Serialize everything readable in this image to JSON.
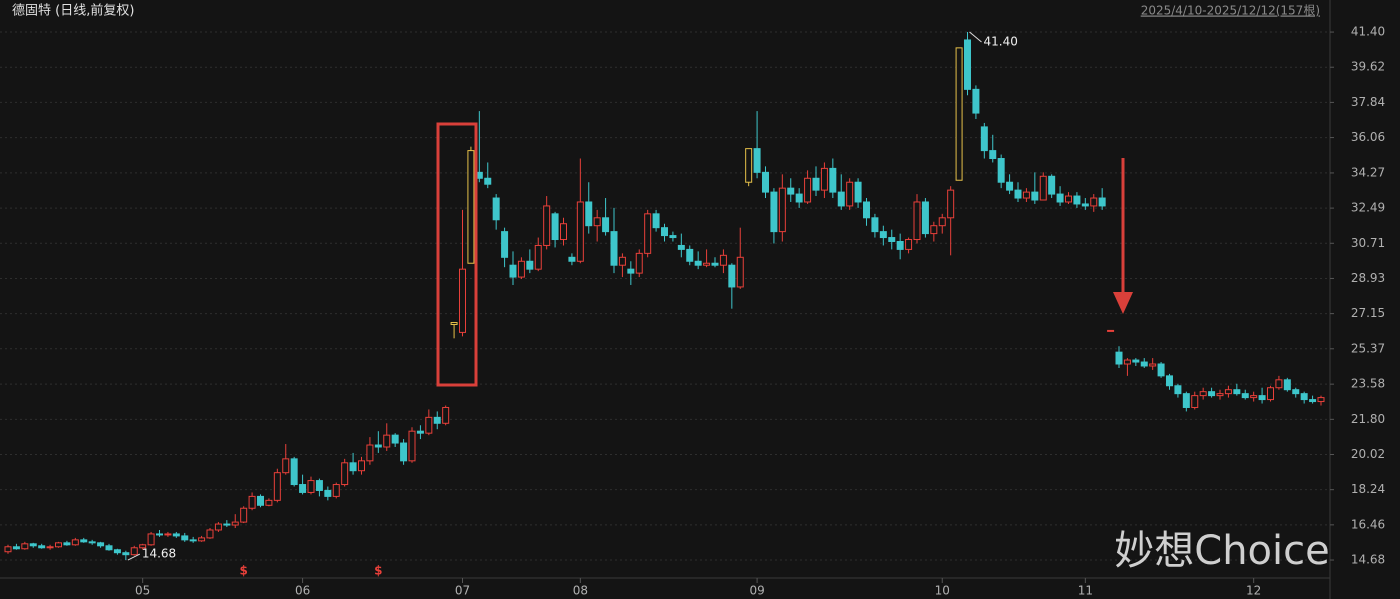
{
  "chart_data": {
    "type": "candlestick",
    "title": "德固特 (日线,前复权)",
    "subtitle": "2025/4/10-2025/12/12(157根)",
    "watermark": "妙想Choice",
    "up_color": "#e8403a",
    "down_color": "#3ec6cb",
    "limit_color": "#e6c14a",
    "limit_up": [
      53,
      55,
      88,
      113
    ],
    "ylim": [
      13.77,
      42.01
    ],
    "yticks": [
      {
        "value": 41.4,
        "label": "41.40"
      },
      39.62,
      37.84,
      36.06,
      34.27,
      32.49,
      30.71,
      28.93,
      27.15,
      25.37,
      23.58,
      {
        "value": 21.8,
        "label": "21.80"
      },
      20.02,
      18.24,
      16.46,
      14.68
    ],
    "xticks": [
      {
        "value": 16,
        "label": "05"
      },
      {
        "value": 35,
        "label": "06"
      },
      {
        "value": 54,
        "label": "07"
      },
      {
        "value": 68,
        "label": "08"
      },
      {
        "value": 89,
        "label": "09"
      },
      {
        "value": 111,
        "label": "10"
      },
      {
        "value": 128,
        "label": "11"
      },
      {
        "value": 148,
        "label": "12"
      }
    ],
    "annotations": [
      {
        "text": "41.40",
        "index": 114
      },
      {
        "text": "14.68",
        "index": 14
      }
    ],
    "markers": [
      {
        "label": "$",
        "index": 28
      },
      {
        "label": "$",
        "index": 44
      }
    ],
    "ohlc": [
      [
        15.1,
        15.45,
        15.0,
        15.35
      ],
      [
        15.35,
        15.5,
        15.2,
        15.25
      ],
      [
        15.25,
        15.6,
        15.2,
        15.5
      ],
      [
        15.5,
        15.55,
        15.3,
        15.4
      ],
      [
        15.4,
        15.5,
        15.25,
        15.3
      ],
      [
        15.3,
        15.45,
        15.2,
        15.35
      ],
      [
        15.35,
        15.6,
        15.3,
        15.55
      ],
      [
        15.55,
        15.65,
        15.4,
        15.45
      ],
      [
        15.45,
        15.8,
        15.4,
        15.7
      ],
      [
        15.7,
        15.8,
        15.55,
        15.6
      ],
      [
        15.6,
        15.7,
        15.45,
        15.55
      ],
      [
        15.55,
        15.6,
        15.3,
        15.4
      ],
      [
        15.4,
        15.5,
        15.15,
        15.2
      ],
      [
        15.2,
        15.25,
        14.95,
        15.05
      ],
      [
        15.05,
        15.15,
        14.68,
        14.95
      ],
      [
        14.95,
        15.4,
        14.9,
        15.3
      ],
      [
        15.3,
        15.5,
        15.2,
        15.45
      ],
      [
        15.45,
        16.1,
        15.4,
        16.0
      ],
      [
        16.0,
        16.2,
        15.85,
        15.95
      ],
      [
        15.95,
        16.1,
        15.85,
        16.0
      ],
      [
        16.0,
        16.1,
        15.8,
        15.9
      ],
      [
        15.9,
        16.05,
        15.6,
        15.7
      ],
      [
        15.7,
        15.85,
        15.55,
        15.65
      ],
      [
        15.65,
        15.9,
        15.6,
        15.8
      ],
      [
        15.8,
        16.3,
        15.75,
        16.2
      ],
      [
        16.2,
        16.6,
        16.1,
        16.5
      ],
      [
        16.5,
        16.7,
        16.35,
        16.45
      ],
      [
        16.45,
        17.0,
        16.3,
        16.6
      ],
      [
        16.6,
        17.4,
        16.55,
        17.3
      ],
      [
        17.3,
        18.1,
        17.2,
        17.9
      ],
      [
        17.9,
        18.0,
        17.35,
        17.45
      ],
      [
        17.45,
        17.8,
        17.4,
        17.7
      ],
      [
        17.7,
        19.3,
        17.6,
        19.1
      ],
      [
        19.1,
        20.55,
        19.0,
        19.8
      ],
      [
        19.8,
        19.9,
        18.4,
        18.5
      ],
      [
        18.5,
        19.0,
        18.0,
        18.1
      ],
      [
        18.1,
        18.9,
        18.0,
        18.7
      ],
      [
        18.7,
        18.8,
        17.9,
        18.2
      ],
      [
        18.2,
        18.4,
        17.7,
        17.9
      ],
      [
        17.9,
        18.6,
        17.8,
        18.5
      ],
      [
        18.5,
        19.8,
        18.4,
        19.6
      ],
      [
        19.6,
        20.1,
        19.0,
        19.2
      ],
      [
        19.2,
        19.9,
        19.0,
        19.7
      ],
      [
        19.7,
        20.9,
        19.5,
        20.5
      ],
      [
        20.5,
        21.2,
        20.1,
        20.4
      ],
      [
        20.4,
        21.6,
        20.2,
        21.0
      ],
      [
        21.0,
        21.1,
        20.4,
        20.6
      ],
      [
        20.6,
        20.8,
        19.5,
        19.7
      ],
      [
        19.7,
        21.4,
        19.6,
        21.2
      ],
      [
        21.2,
        21.5,
        20.8,
        21.1
      ],
      [
        21.1,
        22.3,
        21.0,
        21.9
      ],
      [
        21.9,
        22.2,
        21.3,
        21.6
      ],
      [
        21.6,
        22.5,
        21.5,
        22.4
      ],
      [
        26.6,
        26.7,
        25.9,
        26.7
      ],
      [
        26.2,
        32.4,
        26.0,
        29.4
      ],
      [
        29.7,
        35.6,
        29.7,
        35.4
      ],
      [
        34.3,
        37.4,
        33.8,
        34.0
      ],
      [
        34.0,
        34.8,
        33.5,
        33.7
      ],
      [
        33.0,
        33.2,
        31.4,
        31.9
      ],
      [
        31.3,
        31.5,
        29.5,
        30.0
      ],
      [
        29.6,
        30.3,
        28.6,
        29.0
      ],
      [
        29.0,
        30.0,
        28.9,
        29.8
      ],
      [
        29.8,
        30.4,
        29.2,
        29.4
      ],
      [
        29.4,
        31.0,
        29.3,
        30.6
      ],
      [
        30.6,
        33.1,
        30.4,
        32.6
      ],
      [
        32.2,
        32.3,
        30.5,
        30.9
      ],
      [
        30.9,
        32.0,
        30.6,
        31.7
      ],
      [
        30.0,
        30.2,
        29.6,
        29.8
      ],
      [
        29.8,
        35.0,
        29.7,
        32.8
      ],
      [
        32.8,
        33.8,
        31.2,
        31.6
      ],
      [
        31.6,
        32.4,
        30.8,
        32.0
      ],
      [
        32.0,
        33.0,
        31.1,
        31.3
      ],
      [
        31.3,
        32.5,
        29.2,
        29.6
      ],
      [
        29.6,
        30.2,
        29.0,
        30.0
      ],
      [
        29.4,
        29.8,
        28.6,
        29.2
      ],
      [
        29.2,
        30.4,
        29.0,
        30.2
      ],
      [
        30.2,
        32.4,
        30.0,
        32.2
      ],
      [
        32.2,
        32.4,
        31.3,
        31.5
      ],
      [
        31.5,
        31.7,
        30.8,
        31.1
      ],
      [
        31.1,
        31.3,
        30.8,
        31.0
      ],
      [
        30.6,
        31.2,
        30.0,
        30.4
      ],
      [
        30.4,
        30.6,
        29.6,
        29.8
      ],
      [
        29.8,
        30.3,
        29.4,
        29.6
      ],
      [
        29.6,
        30.4,
        29.5,
        29.7
      ],
      [
        29.7,
        30.0,
        29.5,
        29.6
      ],
      [
        29.6,
        30.4,
        29.2,
        30.1
      ],
      [
        29.6,
        29.7,
        27.4,
        28.5
      ],
      [
        28.5,
        31.5,
        28.4,
        30.0
      ],
      [
        33.8,
        35.5,
        33.6,
        35.5
      ],
      [
        35.5,
        37.4,
        34.0,
        34.3
      ],
      [
        34.3,
        34.6,
        33.0,
        33.3
      ],
      [
        33.3,
        33.5,
        30.7,
        31.3
      ],
      [
        31.3,
        34.2,
        30.8,
        33.5
      ],
      [
        33.5,
        34.0,
        32.8,
        33.2
      ],
      [
        33.2,
        33.5,
        32.5,
        32.8
      ],
      [
        32.8,
        34.4,
        32.7,
        34.0
      ],
      [
        34.0,
        34.6,
        33.1,
        33.4
      ],
      [
        33.4,
        34.8,
        33.0,
        34.5
      ],
      [
        34.5,
        35.0,
        33.0,
        33.3
      ],
      [
        33.3,
        34.2,
        32.4,
        32.6
      ],
      [
        32.6,
        34.0,
        32.4,
        33.8
      ],
      [
        33.8,
        34.0,
        32.5,
        32.8
      ],
      [
        32.8,
        33.0,
        31.6,
        32.0
      ],
      [
        32.0,
        32.2,
        31.0,
        31.3
      ],
      [
        31.3,
        31.6,
        30.6,
        31.0
      ],
      [
        31.0,
        31.4,
        30.4,
        30.8
      ],
      [
        30.8,
        31.2,
        29.9,
        30.4
      ],
      [
        30.4,
        31.0,
        30.2,
        30.9
      ],
      [
        30.9,
        33.2,
        30.7,
        32.8
      ],
      [
        32.8,
        33.0,
        31.0,
        31.2
      ],
      [
        31.2,
        31.8,
        30.8,
        31.6
      ],
      [
        31.6,
        32.2,
        31.2,
        32.0
      ],
      [
        32.0,
        33.6,
        30.1,
        33.4
      ],
      [
        33.9,
        40.6,
        33.9,
        40.6
      ],
      [
        41.0,
        41.4,
        38.2,
        38.5
      ],
      [
        38.5,
        38.7,
        37.0,
        37.3
      ],
      [
        36.6,
        36.8,
        35.0,
        35.4
      ],
      [
        35.4,
        36.2,
        34.8,
        35.0
      ],
      [
        35.0,
        35.2,
        33.5,
        33.8
      ],
      [
        33.8,
        34.2,
        33.2,
        33.4
      ],
      [
        33.4,
        33.8,
        32.8,
        33.0
      ],
      [
        33.0,
        33.5,
        32.8,
        33.3
      ],
      [
        33.3,
        34.3,
        32.7,
        32.9
      ],
      [
        32.9,
        34.3,
        32.9,
        34.1
      ],
      [
        34.1,
        34.2,
        33.0,
        33.2
      ],
      [
        33.2,
        33.6,
        32.6,
        32.8
      ],
      [
        32.8,
        33.3,
        32.7,
        33.1
      ],
      [
        33.1,
        33.3,
        32.5,
        32.7
      ],
      [
        32.7,
        33.0,
        32.4,
        32.6
      ],
      [
        32.6,
        33.2,
        32.3,
        33.0
      ],
      [
        33.0,
        33.5,
        32.4,
        32.6
      ],
      [
        26.3,
        26.3,
        26.3,
        26.3
      ],
      [
        25.2,
        25.5,
        24.4,
        24.6
      ],
      [
        24.6,
        24.9,
        24.0,
        24.8
      ],
      [
        24.8,
        24.9,
        24.5,
        24.7
      ],
      [
        24.7,
        24.9,
        24.4,
        24.5
      ],
      [
        24.5,
        24.9,
        24.3,
        24.6
      ],
      [
        24.6,
        24.7,
        23.9,
        24.0
      ],
      [
        24.0,
        24.1,
        23.3,
        23.5
      ],
      [
        23.5,
        23.6,
        22.9,
        23.1
      ],
      [
        23.1,
        23.2,
        22.2,
        22.4
      ],
      [
        22.4,
        23.2,
        22.3,
        23.0
      ],
      [
        23.0,
        23.4,
        22.8,
        23.2
      ],
      [
        23.2,
        23.4,
        22.9,
        23.0
      ],
      [
        23.0,
        23.3,
        22.8,
        23.1
      ],
      [
        23.1,
        23.5,
        22.9,
        23.3
      ],
      [
        23.3,
        23.6,
        23.0,
        23.1
      ],
      [
        23.1,
        23.3,
        22.8,
        22.9
      ],
      [
        22.9,
        23.2,
        22.7,
        23.0
      ],
      [
        23.0,
        23.4,
        22.6,
        22.8
      ],
      [
        22.8,
        23.5,
        22.7,
        23.4
      ],
      [
        23.4,
        24.0,
        23.3,
        23.8
      ],
      [
        23.8,
        23.9,
        23.2,
        23.3
      ],
      [
        23.3,
        23.4,
        22.9,
        23.1
      ],
      [
        23.1,
        23.2,
        22.6,
        22.8
      ],
      [
        22.8,
        23.0,
        22.6,
        22.7
      ],
      [
        22.7,
        23.0,
        22.5,
        22.9
      ]
    ]
  }
}
